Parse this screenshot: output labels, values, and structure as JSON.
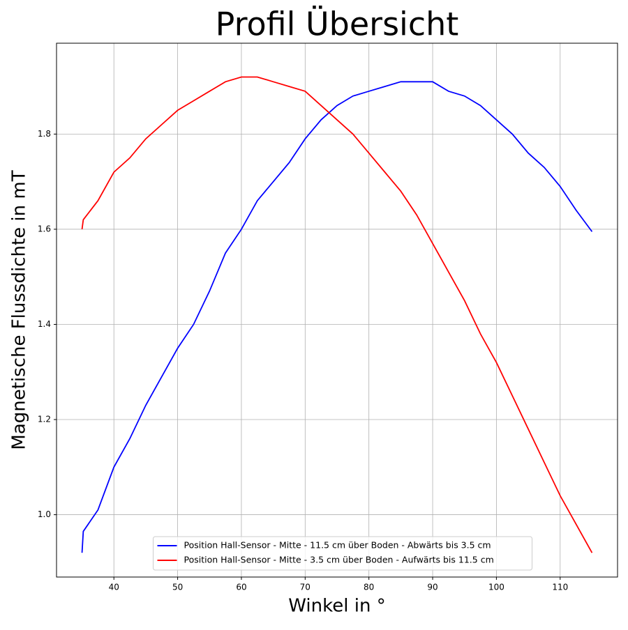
{
  "chart_data": {
    "type": "line",
    "title": "Profil Übersicht",
    "xlabel": "Winkel in °",
    "ylabel": "Magnetische Flussdichte in mT",
    "x": [
      35,
      35.2,
      37.5,
      40,
      42.5,
      45,
      47.5,
      50,
      52.5,
      55,
      57.5,
      60,
      62.5,
      65,
      67.5,
      70,
      72.5,
      75,
      77.5,
      80,
      82.5,
      85,
      87.5,
      90,
      92.5,
      95,
      97.5,
      100,
      102.5,
      105,
      107.5,
      110,
      112.5,
      115
    ],
    "series": [
      {
        "name": "Position Hall-Sensor - Mitte - 11.5 cm über Boden - Abwärts bis 3.5 cm",
        "color": "#0000ff",
        "values": [
          0.92,
          0.965,
          1.01,
          1.1,
          1.16,
          1.23,
          1.29,
          1.35,
          1.4,
          1.47,
          1.55,
          1.6,
          1.66,
          1.7,
          1.74,
          1.79,
          1.83,
          1.86,
          1.88,
          1.89,
          1.9,
          1.91,
          1.91,
          1.91,
          1.89,
          1.88,
          1.86,
          1.83,
          1.8,
          1.76,
          1.73,
          1.69,
          1.64,
          1.595
        ]
      },
      {
        "name": "Position Hall-Sensor - Mitte - 3.5 cm über Boden - Aufwärts bis 11.5 cm",
        "color": "#ff0000",
        "values": [
          1.6,
          1.62,
          1.66,
          1.72,
          1.75,
          1.79,
          1.82,
          1.85,
          1.87,
          1.89,
          1.91,
          1.92,
          1.92,
          1.91,
          1.9,
          1.89,
          1.86,
          1.83,
          1.8,
          1.76,
          1.72,
          1.68,
          1.63,
          1.57,
          1.51,
          1.45,
          1.38,
          1.32,
          1.25,
          1.18,
          1.11,
          1.04,
          0.98,
          0.92
        ]
      }
    ],
    "xlim": [
      31,
      119
    ],
    "ylim": [
      0.869,
      1.991
    ],
    "xticks": [
      40,
      50,
      60,
      70,
      80,
      90,
      100,
      110
    ],
    "yticks": [
      {
        "value": 1,
        "label": "1.0"
      },
      1.2,
      1.4,
      1.6,
      1.8
    ],
    "grid": true,
    "legend": "lower center"
  }
}
